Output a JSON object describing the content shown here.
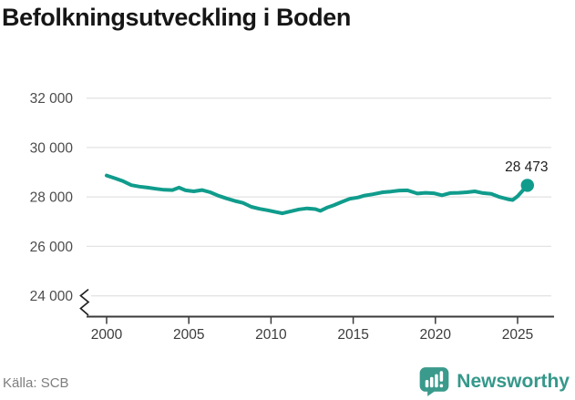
{
  "header": {
    "title": "Befolkningsutveckling i Boden"
  },
  "footer": {
    "source": "Källa: SCB",
    "brand": {
      "name": "Newsworthy",
      "icon": "newsworthy-chart-bubble-icon"
    }
  },
  "colors": {
    "line": "#109c8c",
    "brand_teal": "#3a9a8c",
    "grid": "#e4e4e4",
    "axis": "#3a3a3a",
    "title_text": "#161616",
    "tick_text": "#4c4c4c",
    "source_text": "#7e7e7e"
  },
  "chart_data": {
    "type": "line",
    "title": "Befolkningsutveckling i Boden",
    "xlabel": "",
    "ylabel": "",
    "grid": true,
    "legend": "none",
    "axis_break_at_bottom": true,
    "ylim": [
      23600,
      32500
    ],
    "xlim": [
      1998.8,
      2028
    ],
    "yticks": [
      {
        "value": 32000,
        "label": "32 000"
      },
      {
        "value": 30000,
        "label": "30 000"
      },
      {
        "value": 28000,
        "label": "28 000"
      },
      {
        "value": 26000,
        "label": "26 000"
      },
      {
        "value": 24000,
        "label": "24 000"
      }
    ],
    "xticks": [
      {
        "value": 2000,
        "label": "2000"
      },
      {
        "value": 2005,
        "label": "2005"
      },
      {
        "value": 2010,
        "label": "2010"
      },
      {
        "value": 2015,
        "label": "2015"
      },
      {
        "value": 2020,
        "label": "2020"
      },
      {
        "value": 2025,
        "label": "2025"
      }
    ],
    "x": [
      2000.0,
      2000.5,
      2001.0,
      2001.5,
      2002.0,
      2002.5,
      2003.0,
      2003.5,
      2004.0,
      2004.4,
      2004.8,
      2005.3,
      2005.8,
      2006.3,
      2006.8,
      2007.3,
      2007.8,
      2008.3,
      2008.8,
      2009.3,
      2009.8,
      2010.3,
      2010.7,
      2011.2,
      2011.7,
      2012.2,
      2012.7,
      2013.0,
      2013.4,
      2013.8,
      2014.3,
      2014.8,
      2015.3,
      2015.7,
      2016.2,
      2016.8,
      2017.3,
      2017.8,
      2018.3,
      2018.9,
      2019.4,
      2019.9,
      2020.4,
      2020.9,
      2021.4,
      2021.9,
      2022.4,
      2022.9,
      2023.4,
      2023.9,
      2024.4,
      2024.7,
      2025.0,
      2025.6
    ],
    "values": [
      28870,
      28760,
      28640,
      28480,
      28420,
      28380,
      28330,
      28290,
      28280,
      28380,
      28270,
      28230,
      28280,
      28190,
      28050,
      27940,
      27840,
      27760,
      27600,
      27520,
      27460,
      27390,
      27340,
      27420,
      27500,
      27540,
      27510,
      27440,
      27570,
      27660,
      27800,
      27930,
      27980,
      28060,
      28110,
      28190,
      28220,
      28260,
      28270,
      28140,
      28170,
      28150,
      28070,
      28160,
      28170,
      28190,
      28230,
      28160,
      28130,
      28000,
      27910,
      27880,
      28030,
      28473
    ],
    "end_value": 28473,
    "end_label": "28 473",
    "line_color": "#109c8c"
  }
}
